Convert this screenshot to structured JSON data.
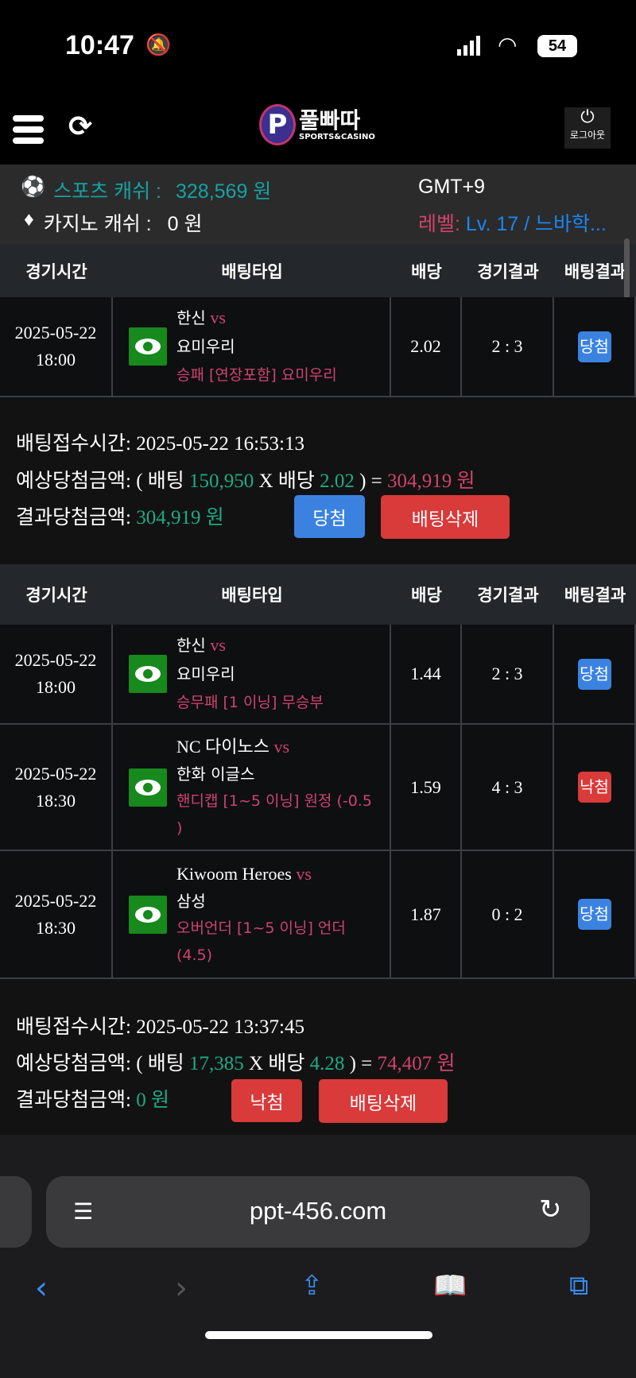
{
  "status_bar": {
    "time": "10:47",
    "battery": "54"
  },
  "header": {
    "logo_text": "풀빠따",
    "logo_sub": "SPORTS&CASINO",
    "logout": "로그아웃"
  },
  "info": {
    "sports_label": "스포츠 캐쉬 :",
    "sports_value": "328,569 원",
    "casino_label": "카지노 캐쉬 :",
    "casino_value": "0 원",
    "timezone": "GMT+9",
    "level_label": "레벨:",
    "level_value": "Lv. 17 / 느바학..."
  },
  "columns": [
    "경기시간",
    "배팅타입",
    "배당",
    "경기결과",
    "배팅결과"
  ],
  "bets": [
    {
      "rows": [
        {
          "date": "2025-05-22",
          "time": "18:00",
          "home": "한신",
          "vs": "vs",
          "away": "요미우리",
          "pick": "승패 [연장포함] 요미우리",
          "odds": "2.02",
          "score": "2 : 3",
          "result": "당첨",
          "result_color": "#3b82e0"
        }
      ],
      "summary": {
        "time_label": "배팅접수시간:",
        "time": "2025-05-22 16:53:13",
        "expected_label": "예상당첨금액:",
        "open": "( 배팅",
        "stake": "150,950",
        "x": "X 배당",
        "total_odds": "2.02",
        "eq": ") =",
        "expected": "304,919 원",
        "result_label": "결과당첨금액:",
        "result_amount": "304,919 원",
        "status_btn": "당첨",
        "delete_btn": "배팅삭제"
      }
    },
    {
      "rows": [
        {
          "date": "2025-05-22",
          "time": "18:00",
          "home": "한신",
          "vs": "vs",
          "away": "요미우리",
          "pick": "승무패 [1 이닝] 무승부",
          "odds": "1.44",
          "score": "2 : 3",
          "result": "당첨",
          "result_color": "#3b82e0"
        },
        {
          "date": "2025-05-22",
          "time": "18:30",
          "home": "NC 다이노스",
          "vs": "vs",
          "away": "한화 이글스",
          "pick": "핸디캡 [1~5 이닝] 원정 (-0.5 )",
          "odds": "1.59",
          "score": "4 : 3",
          "result": "낙첨",
          "result_color": "#d93a3a"
        },
        {
          "date": "2025-05-22",
          "time": "18:30",
          "home": "Kiwoom Heroes",
          "vs": "vs",
          "away": "삼성",
          "pick": "오버언더 [1~5 이닝] 언더 (4.5)",
          "odds": "1.87",
          "score": "0 : 2",
          "result": "당첨",
          "result_color": "#3b82e0"
        }
      ],
      "summary": {
        "time_label": "배팅접수시간:",
        "time": "2025-05-22 13:37:45",
        "expected_label": "예상당첨금액:",
        "open": "( 배팅",
        "stake": "17,385",
        "x": "X 배당",
        "total_odds": "4.28",
        "eq": ") =",
        "expected": "74,407 원",
        "result_label": "결과당첨금액:",
        "result_amount": "0 원",
        "status_btn": "낙첨",
        "delete_btn": "배팅삭제"
      }
    }
  ],
  "browser": {
    "url": "ppt-456.com"
  }
}
